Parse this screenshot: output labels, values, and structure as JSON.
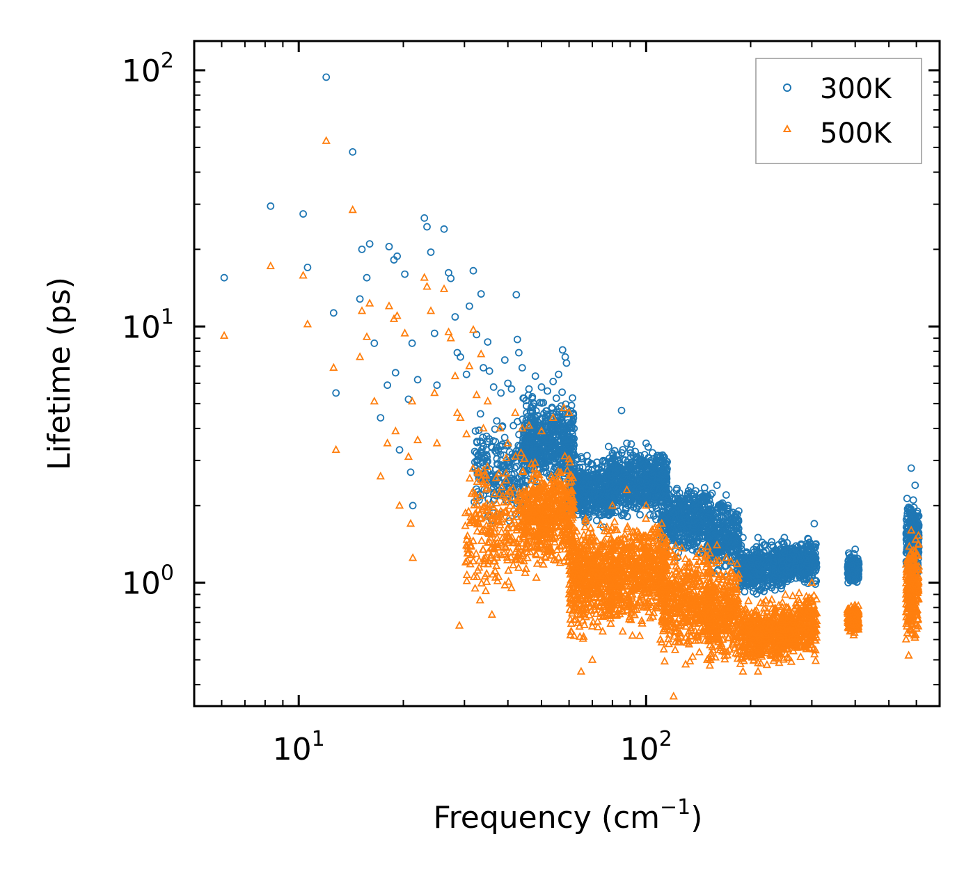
{
  "chart_data": {
    "type": "scatter",
    "title": "",
    "xlabel": "Frequency (cm⁻¹)",
    "xlabel_parts": {
      "main": "Frequency (cm",
      "sup": "−1",
      "close": ")"
    },
    "ylabel": "Lifetime (ps)",
    "xscale": "log",
    "yscale": "log",
    "xlim": [
      5,
      700
    ],
    "ylim": [
      0.33,
      130
    ],
    "x_ticks": [
      {
        "base": "10",
        "exp": "1",
        "value": 10
      },
      {
        "base": "10",
        "exp": "2",
        "value": 100
      }
    ],
    "y_ticks": [
      {
        "base": "10",
        "exp": "0",
        "value": 1
      },
      {
        "base": "10",
        "exp": "1",
        "value": 10
      },
      {
        "base": "10",
        "exp": "2",
        "value": 100
      }
    ],
    "legend_position": "top-right",
    "series": [
      {
        "name": "300K",
        "marker": "circle",
        "color": "#1f77b4",
        "points": [
          [
            6.1,
            15.5
          ],
          [
            8.3,
            29.5
          ],
          [
            10.3,
            27.5
          ],
          [
            10.6,
            17.0
          ],
          [
            12.0,
            94.0
          ],
          [
            12.6,
            11.3
          ],
          [
            12.8,
            5.5
          ],
          [
            14.3,
            48.0
          ],
          [
            15.0,
            12.8
          ],
          [
            15.2,
            20.0
          ],
          [
            15.7,
            15.5
          ],
          [
            16.0,
            21.0
          ],
          [
            16.5,
            8.6
          ],
          [
            17.2,
            4.4
          ],
          [
            18.0,
            5.9
          ],
          [
            18.2,
            20.5
          ],
          [
            18.8,
            18.2
          ],
          [
            19.0,
            6.6
          ],
          [
            19.2,
            18.8
          ],
          [
            19.5,
            3.3
          ],
          [
            20.2,
            16.0
          ],
          [
            20.7,
            5.2
          ],
          [
            21.2,
            8.6
          ],
          [
            21.0,
            2.7
          ],
          [
            21.3,
            2.0
          ],
          [
            22.0,
            6.2
          ],
          [
            23.0,
            26.5
          ],
          [
            23.4,
            24.5
          ],
          [
            24.0,
            19.5
          ],
          [
            24.6,
            9.4
          ],
          [
            25.0,
            5.9
          ],
          [
            26.2,
            24.0
          ],
          [
            27.0,
            16.2
          ],
          [
            27.4,
            15.4
          ],
          [
            28.2,
            10.9
          ],
          [
            28.6,
            7.9
          ],
          [
            29.2,
            7.6
          ],
          [
            30.4,
            6.5
          ],
          [
            31.0,
            12.0
          ],
          [
            31.8,
            16.5
          ],
          [
            32.5,
            9.3
          ],
          [
            33.5,
            13.4
          ],
          [
            34.0,
            6.9
          ],
          [
            35.0,
            8.7
          ],
          [
            35.4,
            6.7
          ],
          [
            36.4,
            5.8
          ],
          [
            38.2,
            5.5
          ],
          [
            39.2,
            7.4
          ],
          [
            40.0,
            6.0
          ],
          [
            41.0,
            5.7
          ],
          [
            42.3,
            13.3
          ],
          [
            42.6,
            8.9
          ],
          [
            43.0,
            7.9
          ],
          [
            44.0,
            6.9
          ],
          [
            46.0,
            5.7
          ],
          [
            48.0,
            6.4
          ],
          [
            50.0,
            5.8
          ],
          [
            52.0,
            5.6
          ],
          [
            54.0,
            6.1
          ],
          [
            56.0,
            6.5
          ],
          [
            57.5,
            8.1
          ],
          [
            58.5,
            7.6
          ],
          [
            59.0,
            7.2
          ],
          [
            62.0,
            4.0
          ],
          [
            65.0,
            3.1
          ],
          [
            70.0,
            2.9
          ],
          [
            78.0,
            3.4
          ],
          [
            80.0,
            3.2
          ],
          [
            85.0,
            4.7
          ],
          [
            88.0,
            3.5
          ],
          [
            90.0,
            3.3
          ],
          [
            100.0,
            3.5
          ],
          [
            110.0,
            2.8
          ],
          [
            125.0,
            2.1
          ],
          [
            140.0,
            1.9
          ],
          [
            150.0,
            1.8
          ],
          [
            160.0,
            2.4
          ],
          [
            170.0,
            2.2
          ],
          [
            190.0,
            1.5
          ],
          [
            210.0,
            1.5
          ],
          [
            230.0,
            1.4
          ],
          [
            250.0,
            1.5
          ],
          [
            280.0,
            1.4
          ],
          [
            305.0,
            1.7
          ],
          [
            400.0,
            1.35
          ],
          [
            580.0,
            2.8
          ],
          [
            595.0,
            2.4
          ]
        ],
        "clusters": [
          {
            "x": [
              32,
              45
            ],
            "y": [
              1.5,
              5.0
            ],
            "n": 240
          },
          {
            "x": [
              44,
              62
            ],
            "y": [
              2.2,
              5.8
            ],
            "n": 520
          },
          {
            "x": [
              60,
              80
            ],
            "y": [
              1.6,
              3.3
            ],
            "n": 480
          },
          {
            "x": [
              78,
              115
            ],
            "y": [
              1.7,
              3.6
            ],
            "n": 620
          },
          {
            "x": [
              110,
              155
            ],
            "y": [
              1.2,
              2.6
            ],
            "n": 480
          },
          {
            "x": [
              150,
              185
            ],
            "y": [
              1.0,
              2.3
            ],
            "n": 300
          },
          {
            "x": [
              185,
              250
            ],
            "y": [
              0.85,
              1.5
            ],
            "n": 460
          },
          {
            "x": [
              245,
              310
            ],
            "y": [
              0.95,
              1.55
            ],
            "n": 360
          },
          {
            "x": [
              380,
              410
            ],
            "y": [
              0.95,
              1.35
            ],
            "n": 150
          },
          {
            "x": [
              560,
              610
            ],
            "y": [
              0.95,
              2.4
            ],
            "n": 240
          }
        ]
      },
      {
        "name": "500K",
        "marker": "triangle",
        "color": "#ff7f0e",
        "points": [
          [
            6.1,
            9.2
          ],
          [
            8.3,
            17.2
          ],
          [
            10.3,
            15.8
          ],
          [
            10.6,
            10.2
          ],
          [
            12.0,
            53.0
          ],
          [
            12.6,
            6.9
          ],
          [
            12.8,
            3.3
          ],
          [
            14.3,
            28.5
          ],
          [
            15.0,
            7.6
          ],
          [
            15.2,
            11.5
          ],
          [
            15.7,
            9.1
          ],
          [
            16.0,
            12.3
          ],
          [
            16.5,
            5.1
          ],
          [
            17.2,
            2.6
          ],
          [
            18.0,
            3.5
          ],
          [
            18.2,
            12.0
          ],
          [
            18.8,
            10.7
          ],
          [
            19.0,
            3.9
          ],
          [
            19.2,
            11.0
          ],
          [
            19.5,
            2.0
          ],
          [
            20.2,
            9.4
          ],
          [
            20.7,
            3.1
          ],
          [
            21.2,
            5.1
          ],
          [
            21.0,
            1.7
          ],
          [
            21.3,
            1.25
          ],
          [
            22.0,
            3.6
          ],
          [
            23.0,
            15.5
          ],
          [
            23.4,
            14.3
          ],
          [
            24.0,
            11.5
          ],
          [
            24.6,
            5.5
          ],
          [
            25.0,
            3.5
          ],
          [
            26.2,
            14.0
          ],
          [
            27.0,
            9.5
          ],
          [
            27.4,
            9.0
          ],
          [
            28.2,
            6.4
          ],
          [
            28.6,
            4.6
          ],
          [
            29.2,
            4.4
          ],
          [
            29.0,
            0.68
          ],
          [
            30.4,
            3.8
          ],
          [
            31.0,
            7.0
          ],
          [
            31.8,
            9.7
          ],
          [
            32.5,
            5.4
          ],
          [
            33.5,
            7.8
          ],
          [
            34.0,
            4.0
          ],
          [
            35.0,
            5.1
          ],
          [
            36.0,
            0.75
          ],
          [
            38.0,
            4.0
          ],
          [
            40.0,
            3.5
          ],
          [
            42.0,
            4.6
          ],
          [
            44.0,
            4.0
          ],
          [
            46.0,
            4.1
          ],
          [
            50.0,
            3.9
          ],
          [
            54.0,
            4.4
          ],
          [
            58.0,
            4.8
          ],
          [
            60.0,
            4.6
          ],
          [
            62.0,
            0.62
          ],
          [
            65.0,
            0.45
          ],
          [
            70.0,
            0.5
          ],
          [
            80.0,
            2.0
          ],
          [
            88.0,
            2.3
          ],
          [
            100.0,
            2.0
          ],
          [
            110.0,
            0.6
          ],
          [
            120.0,
            0.36
          ],
          [
            130.0,
            0.48
          ],
          [
            150.0,
            0.5
          ],
          [
            160.0,
            1.4
          ],
          [
            170.0,
            1.25
          ],
          [
            190.0,
            0.45
          ],
          [
            210.0,
            0.45
          ],
          [
            230.0,
            0.55
          ],
          [
            260.0,
            0.6
          ],
          [
            300.0,
            1.0
          ],
          [
            400.0,
            0.8
          ],
          [
            580.0,
            1.6
          ],
          [
            570.0,
            0.52
          ]
        ],
        "clusters": [
          {
            "x": [
              30,
              45
            ],
            "y": [
              0.75,
              3.6
            ],
            "n": 260
          },
          {
            "x": [
              44,
              62
            ],
            "y": [
              1.0,
              3.4
            ],
            "n": 560
          },
          {
            "x": [
              60,
              80
            ],
            "y": [
              0.55,
              1.9
            ],
            "n": 520
          },
          {
            "x": [
              78,
              115
            ],
            "y": [
              0.6,
              2.0
            ],
            "n": 640
          },
          {
            "x": [
              110,
              155
            ],
            "y": [
              0.45,
              1.6
            ],
            "n": 480
          },
          {
            "x": [
              150,
              185
            ],
            "y": [
              0.45,
              1.3
            ],
            "n": 320
          },
          {
            "x": [
              185,
              250
            ],
            "y": [
              0.45,
              0.9
            ],
            "n": 460
          },
          {
            "x": [
              245,
              310
            ],
            "y": [
              0.48,
              0.95
            ],
            "n": 360
          },
          {
            "x": [
              380,
              410
            ],
            "y": [
              0.6,
              0.85
            ],
            "n": 150
          },
          {
            "x": [
              560,
              610
            ],
            "y": [
              0.55,
              1.6
            ],
            "n": 260
          }
        ]
      }
    ]
  }
}
